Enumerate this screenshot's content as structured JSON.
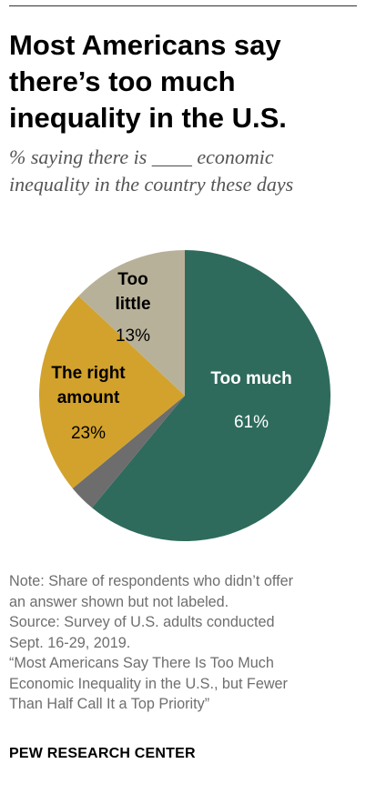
{
  "header": {
    "title_lines": [
      "Most Americans say",
      "there’s too much",
      "inequality in the U.S."
    ],
    "subtitle_lines": [
      "% saying there is ____ economic",
      "inequality in the country these days"
    ]
  },
  "chart_data": {
    "type": "pie",
    "title": "Most Americans say there’s too much inequality in the U.S.",
    "subtitle": "% saying there is ____ economic inequality in the country these days",
    "slices": [
      {
        "key": "too_much",
        "label_lines": [
          "Too much"
        ],
        "value": 61,
        "value_label": "61%",
        "color": "#2e6b5c",
        "text_color": "#ffffff"
      },
      {
        "key": "no_answer",
        "label_lines": [],
        "value": 3,
        "value_label": "",
        "color": "#6d6d6d",
        "text_color": "#ffffff"
      },
      {
        "key": "right_amount",
        "label_lines": [
          "The right",
          "amount"
        ],
        "value": 23,
        "value_label": "23%",
        "color": "#d2a22c",
        "text_color": "#000000"
      },
      {
        "key": "too_little",
        "label_lines": [
          "Too",
          "little"
        ],
        "value": 13,
        "value_label": "13%",
        "color": "#b8b199",
        "text_color": "#000000"
      }
    ],
    "start_angle_deg": 0,
    "direction": "clockwise",
    "legend": "none"
  },
  "notes": {
    "note_lines": [
      "Note: Share of respondents who didn’t offer",
      "an answer shown but not labeled."
    ],
    "source_lines": [
      "Source: Survey of U.S. adults conducted",
      "Sept. 16-29, 2019."
    ],
    "report_lines": [
      "“Most Americans Say There Is Too Much",
      "Economic Inequality in the U.S., but Fewer",
      "Than Half Call It a Top Priority”"
    ]
  },
  "footer": {
    "brand": "PEW RESEARCH CENTER"
  }
}
